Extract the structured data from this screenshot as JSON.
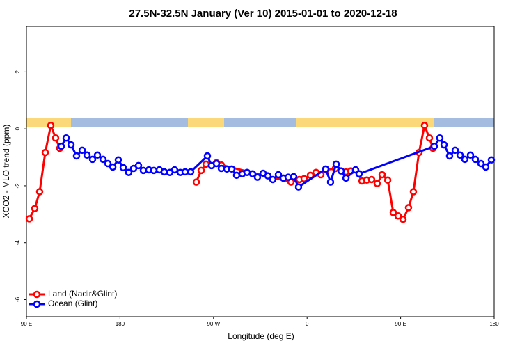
{
  "chart_data": {
    "type": "line",
    "title": "27.5N-32.5N January (Ver 10)   2015-01-01 to 2020-12-18",
    "xlabel": "Longitude (deg E)",
    "ylabel": "XCO2 - MLO trend (ppm)",
    "xlim": [
      90,
      540
    ],
    "ylim": [
      -6.6,
      3.6
    ],
    "xticks": [
      {
        "value": 90,
        "label": "90 E"
      },
      180,
      {
        "value": 270,
        "label": "90 W"
      },
      {
        "value": 360,
        "label": "0"
      },
      {
        "value": 450,
        "label": "90 E"
      },
      {
        "value": 540,
        "label": "180"
      }
    ],
    "yticks": [
      -6,
      -4,
      -2,
      0,
      2
    ],
    "legend": "bottom-left",
    "series": [
      {
        "name": "Land (Nadir&Glint)",
        "color": "#ff0000",
        "x": [
          92.7,
          98.0,
          102.7,
          108.1,
          113.4,
          118.1,
          122.1,
          131.5,
          253.4,
          258.1,
          262.8,
          272.8,
          277.5,
          344.5,
          352.5,
          357.2,
          363.2,
          368.6,
          373.3,
          378.0,
          387.3,
          397.4,
          402.1,
          406.7,
          412.8,
          417.5,
          422.1,
          427.5,
          432.2,
          437.6,
          442.9,
          447.6,
          452.3,
          457.6,
          462.3,
          467.7,
          473.0,
          477.7,
          481.1,
          491.1
        ],
        "values": [
          -3.16,
          -2.8,
          -2.21,
          -0.83,
          0.12,
          -0.32,
          -0.68,
          null,
          -1.87,
          -1.46,
          -1.24,
          -1.19,
          -1.27,
          -1.87,
          -1.78,
          -1.75,
          -1.63,
          -1.53,
          -1.61,
          -1.44,
          -1.39,
          -1.51,
          -1.48,
          -1.44,
          -1.83,
          -1.8,
          -1.78,
          -1.92,
          -1.61,
          -1.8,
          -2.94,
          -3.06,
          -3.18,
          -2.77,
          -2.21,
          -0.83,
          0.12,
          -0.32,
          -0.68,
          null
        ]
      },
      {
        "name": "Ocean (Glint)",
        "color": "#0000ff",
        "x": [
          123.5,
          128.2,
          132.9,
          138.2,
          143.6,
          148.3,
          153.6,
          158.3,
          163.7,
          168.4,
          173.1,
          178.4,
          183.1,
          188.4,
          193.1,
          197.8,
          202.5,
          207.8,
          212.5,
          217.9,
          222.6,
          227.9,
          232.6,
          238.0,
          242.7,
          248.0,
          264.1,
          268.1,
          272.8,
          277.5,
          282.8,
          287.5,
          292.2,
          297.6,
          302.3,
          307.6,
          312.3,
          317.7,
          322.3,
          327.0,
          332.4,
          337.1,
          341.8,
          347.1,
          351.8,
          377.9,
          382.6,
          388.0,
          392.7,
          397.4,
          406.7,
          410.1,
          482.4,
          487.7,
          491.8,
          497.1,
          502.5,
          507.2,
          511.8,
          517.2,
          521.9,
          527.3,
          531.9,
          537.3
        ],
        "values": [
          -0.61,
          -0.32,
          -0.56,
          -0.95,
          -0.75,
          -0.92,
          -1.07,
          -0.92,
          -1.07,
          -1.22,
          -1.34,
          -1.09,
          -1.36,
          -1.53,
          -1.39,
          -1.29,
          -1.46,
          -1.44,
          -1.46,
          -1.44,
          -1.51,
          -1.53,
          -1.44,
          -1.53,
          -1.51,
          -1.51,
          -0.95,
          -1.29,
          -1.22,
          -1.39,
          -1.41,
          -1.41,
          -1.63,
          -1.58,
          -1.53,
          -1.58,
          -1.7,
          -1.56,
          -1.65,
          -1.78,
          -1.61,
          -1.73,
          -1.7,
          -1.68,
          -2.04,
          -1.41,
          -1.87,
          -1.24,
          -1.48,
          -1.73,
          -1.44,
          -1.58,
          -0.61,
          -0.32,
          -0.56,
          -0.95,
          -0.75,
          -0.92,
          -1.07,
          -0.92,
          -1.07,
          -1.22,
          -1.34,
          -1.09
        ]
      }
    ]
  }
}
